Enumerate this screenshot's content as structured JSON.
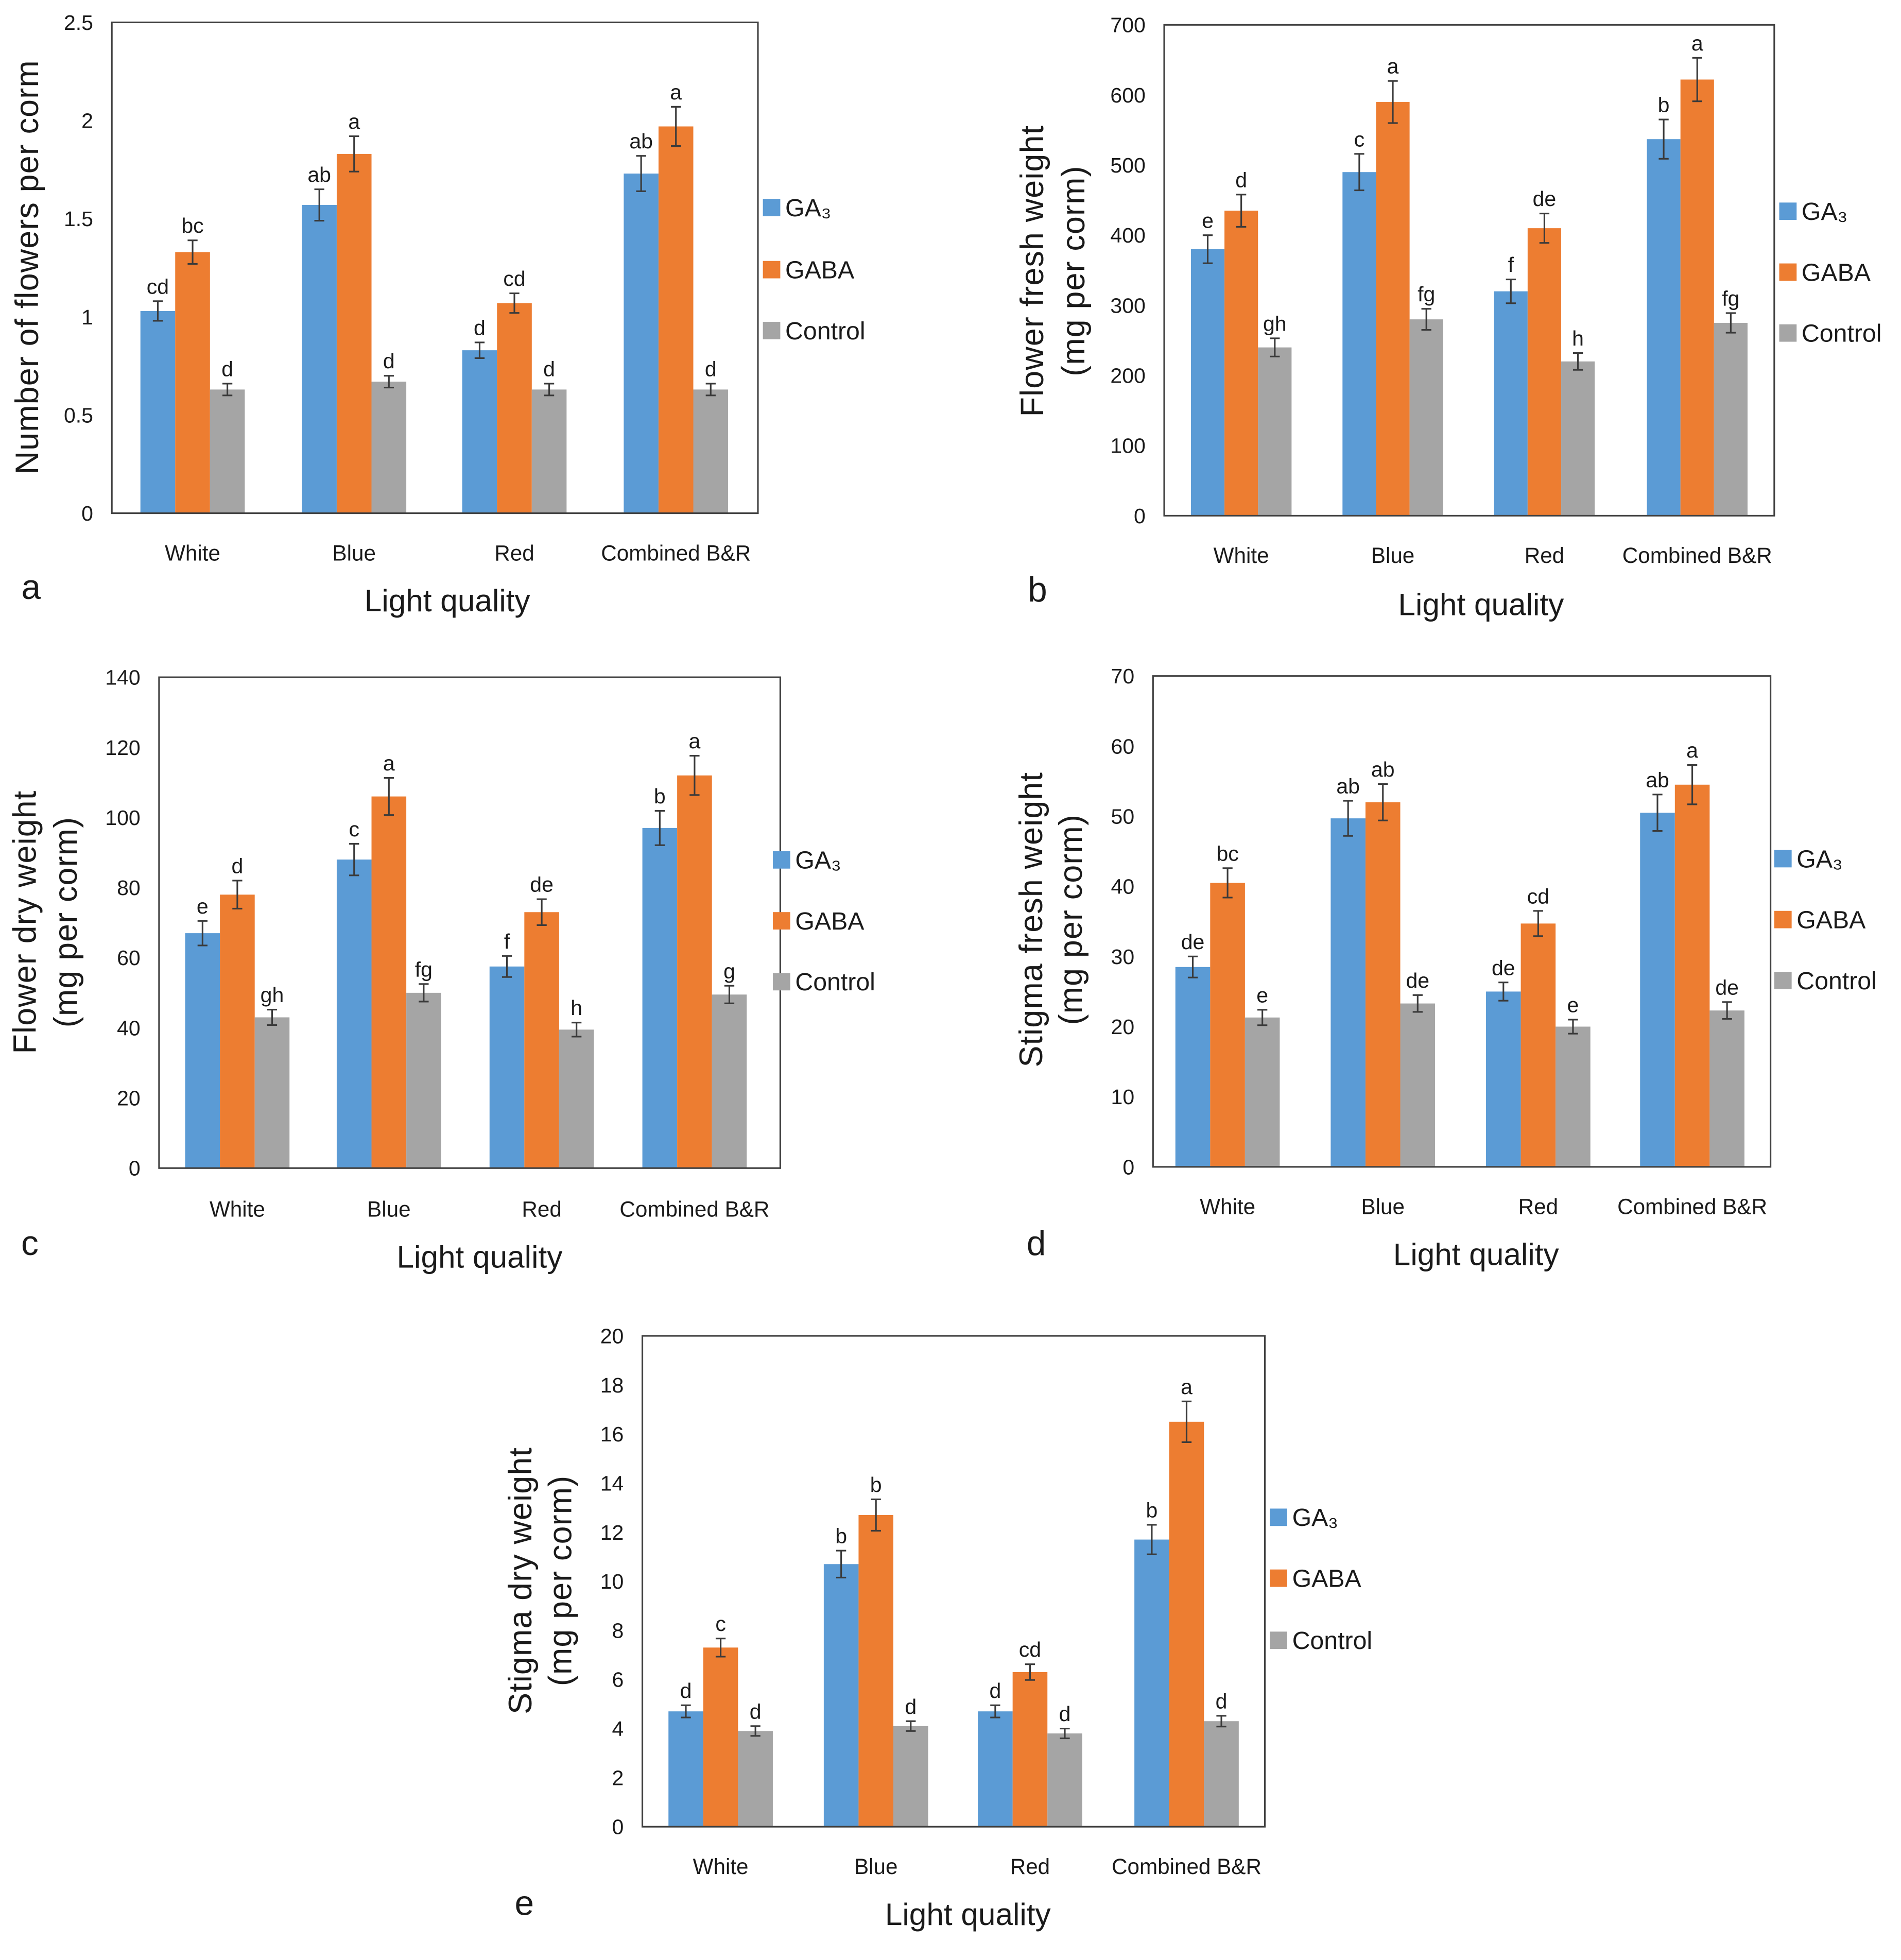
{
  "chart_data": [
    {
      "panel": "a",
      "type": "bar",
      "xlabel": "Light quality",
      "ylabel": [
        "Number of flowers per corm"
      ],
      "categories": [
        "White",
        "Blue",
        "Red",
        "Combined B&R"
      ],
      "ylim": [
        0,
        2.5
      ],
      "yticks": [
        0,
        0.5,
        1,
        1.5,
        2,
        2.5
      ],
      "grid": false,
      "legend": "right",
      "series": [
        {
          "name": "GA₃",
          "color": "#5B9BD5",
          "values": [
            1.03,
            1.57,
            0.83,
            1.73
          ],
          "errors": [
            0.05,
            0.08,
            0.04,
            0.09
          ],
          "letters": [
            "cd",
            "ab",
            "d",
            "ab"
          ]
        },
        {
          "name": "GABA",
          "color": "#ED7D31",
          "values": [
            1.33,
            1.83,
            1.07,
            1.97
          ],
          "errors": [
            0.06,
            0.09,
            0.05,
            0.1
          ],
          "letters": [
            "bc",
            "a",
            "cd",
            "a"
          ]
        },
        {
          "name": "Control",
          "color": "#A5A5A5",
          "values": [
            0.63,
            0.67,
            0.63,
            0.63
          ],
          "errors": [
            0.03,
            0.03,
            0.03,
            0.03
          ],
          "letters": [
            "d",
            "d",
            "d",
            "d"
          ]
        }
      ]
    },
    {
      "panel": "b",
      "type": "bar",
      "xlabel": "Light quality",
      "ylabel": [
        "Flower fresh weight",
        "(mg per corm)"
      ],
      "categories": [
        "White",
        "Blue",
        "Red",
        "Combined B&R"
      ],
      "ylim": [
        0,
        700
      ],
      "yticks": [
        0,
        100,
        200,
        300,
        400,
        500,
        600,
        700
      ],
      "grid": false,
      "legend": "right",
      "series": [
        {
          "name": "GA₃",
          "color": "#5B9BD5",
          "values": [
            380,
            490,
            320,
            537
          ],
          "errors": [
            20,
            26,
            17,
            28
          ],
          "letters": [
            "e",
            "c",
            "f",
            "b"
          ]
        },
        {
          "name": "GABA",
          "color": "#ED7D31",
          "values": [
            435,
            590,
            410,
            622
          ],
          "errors": [
            23,
            30,
            21,
            31
          ],
          "letters": [
            "d",
            "a",
            "de",
            "a"
          ]
        },
        {
          "name": "Control",
          "color": "#A5A5A5",
          "values": [
            240,
            280,
            220,
            275
          ],
          "errors": [
            13,
            15,
            12,
            14
          ],
          "letters": [
            "gh",
            "fg",
            "h",
            "fg"
          ]
        }
      ]
    },
    {
      "panel": "c",
      "type": "bar",
      "xlabel": "Light quality",
      "ylabel": [
        "Flower dry weight",
        "(mg per corm)"
      ],
      "categories": [
        "White",
        "Blue",
        "Red",
        "Combined B&R"
      ],
      "ylim": [
        0,
        140
      ],
      "yticks": [
        0,
        20,
        40,
        60,
        80,
        100,
        120,
        140
      ],
      "grid": false,
      "legend": "right",
      "series": [
        {
          "name": "GA₃",
          "color": "#5B9BD5",
          "values": [
            67,
            88,
            57.5,
            97
          ],
          "errors": [
            3.5,
            4.5,
            3,
            4.9
          ],
          "letters": [
            "e",
            "c",
            "f",
            "b"
          ]
        },
        {
          "name": "GABA",
          "color": "#ED7D31",
          "values": [
            78,
            106,
            73,
            112
          ],
          "errors": [
            4,
            5.3,
            3.7,
            5.6
          ],
          "letters": [
            "d",
            "a",
            "de",
            "a"
          ]
        },
        {
          "name": "Control",
          "color": "#A5A5A5",
          "values": [
            43,
            50,
            39.5,
            49.5
          ],
          "errors": [
            2.2,
            2.5,
            2,
            2.5
          ],
          "letters": [
            "gh",
            "fg",
            "h",
            "g"
          ]
        }
      ]
    },
    {
      "panel": "d",
      "type": "bar",
      "xlabel": "Light quality",
      "ylabel": [
        "Stigma fresh weight",
        "(mg per corm)"
      ],
      "categories": [
        "White",
        "Blue",
        "Red",
        "Combined B&R"
      ],
      "ylim": [
        0,
        70
      ],
      "yticks": [
        0,
        10,
        20,
        30,
        40,
        50,
        60,
        70
      ],
      "grid": false,
      "legend": "right",
      "series": [
        {
          "name": "GA₃",
          "color": "#5B9BD5",
          "values": [
            28.5,
            49.7,
            25,
            50.5
          ],
          "errors": [
            1.5,
            2.5,
            1.3,
            2.6
          ],
          "letters": [
            "de",
            "ab",
            "de",
            "ab"
          ]
        },
        {
          "name": "GABA",
          "color": "#ED7D31",
          "values": [
            40.5,
            52,
            34.7,
            54.5
          ],
          "errors": [
            2.1,
            2.6,
            1.8,
            2.8
          ],
          "letters": [
            "bc",
            "ab",
            "cd",
            "a"
          ]
        },
        {
          "name": "Control",
          "color": "#A5A5A5",
          "values": [
            21.3,
            23.3,
            20,
            22.3
          ],
          "errors": [
            1.1,
            1.2,
            1,
            1.2
          ],
          "letters": [
            "e",
            "de",
            "e",
            "de"
          ]
        }
      ]
    },
    {
      "panel": "e",
      "type": "bar",
      "xlabel": "Light quality",
      "ylabel": [
        "Stigma dry weight",
        "(mg per corm)"
      ],
      "categories": [
        "White",
        "Blue",
        "Red",
        "Combined B&R"
      ],
      "ylim": [
        0,
        20
      ],
      "yticks": [
        0,
        2,
        4,
        6,
        8,
        10,
        12,
        14,
        16,
        18,
        20
      ],
      "grid": false,
      "legend": "right",
      "series": [
        {
          "name": "GA₃",
          "color": "#5B9BD5",
          "values": [
            4.7,
            10.7,
            4.7,
            11.7
          ],
          "errors": [
            0.25,
            0.55,
            0.25,
            0.6
          ],
          "letters": [
            "d",
            "b",
            "d",
            "b"
          ]
        },
        {
          "name": "GABA",
          "color": "#ED7D31",
          "values": [
            7.3,
            12.7,
            6.3,
            16.5
          ],
          "errors": [
            0.37,
            0.64,
            0.32,
            0.83
          ],
          "letters": [
            "c",
            "b",
            "cd",
            "a"
          ]
        },
        {
          "name": "Control",
          "color": "#A5A5A5",
          "values": [
            3.9,
            4.1,
            3.8,
            4.3
          ],
          "errors": [
            0.2,
            0.2,
            0.2,
            0.22
          ],
          "letters": [
            "d",
            "d",
            "d",
            "d"
          ]
        }
      ]
    }
  ]
}
